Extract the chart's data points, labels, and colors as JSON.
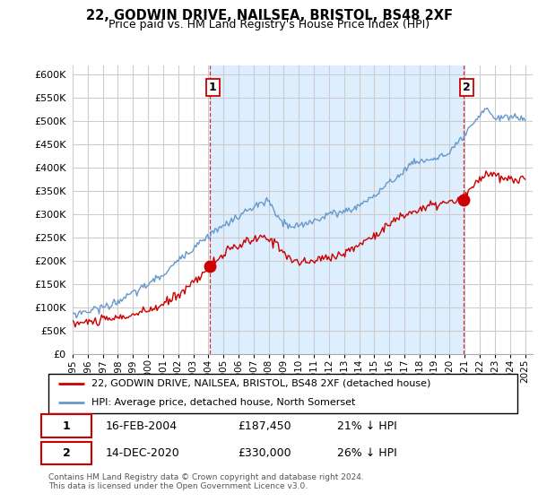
{
  "title": "22, GODWIN DRIVE, NAILSEA, BRISTOL, BS48 2XF",
  "subtitle": "Price paid vs. HM Land Registry's House Price Index (HPI)",
  "legend_line1": "22, GODWIN DRIVE, NAILSEA, BRISTOL, BS48 2XF (detached house)",
  "legend_line2": "HPI: Average price, detached house, North Somerset",
  "annotation1_date": "16-FEB-2004",
  "annotation1_price": "£187,450",
  "annotation1_hpi": "21% ↓ HPI",
  "annotation2_date": "14-DEC-2020",
  "annotation2_price": "£330,000",
  "annotation2_hpi": "26% ↓ HPI",
  "footer": "Contains HM Land Registry data © Crown copyright and database right 2024.\nThis data is licensed under the Open Government Licence v3.0.",
  "ylim": [
    0,
    620000
  ],
  "yticks": [
    0,
    50000,
    100000,
    150000,
    200000,
    250000,
    300000,
    350000,
    400000,
    450000,
    500000,
    550000,
    600000
  ],
  "red_color": "#cc0000",
  "blue_color": "#6699cc",
  "shade_color": "#ddeeff",
  "grid_color": "#cccccc",
  "background_color": "#ffffff",
  "ann1_t": 2004.083,
  "ann2_t": 2020.917,
  "ann1_price": 187450,
  "ann2_price": 330000
}
